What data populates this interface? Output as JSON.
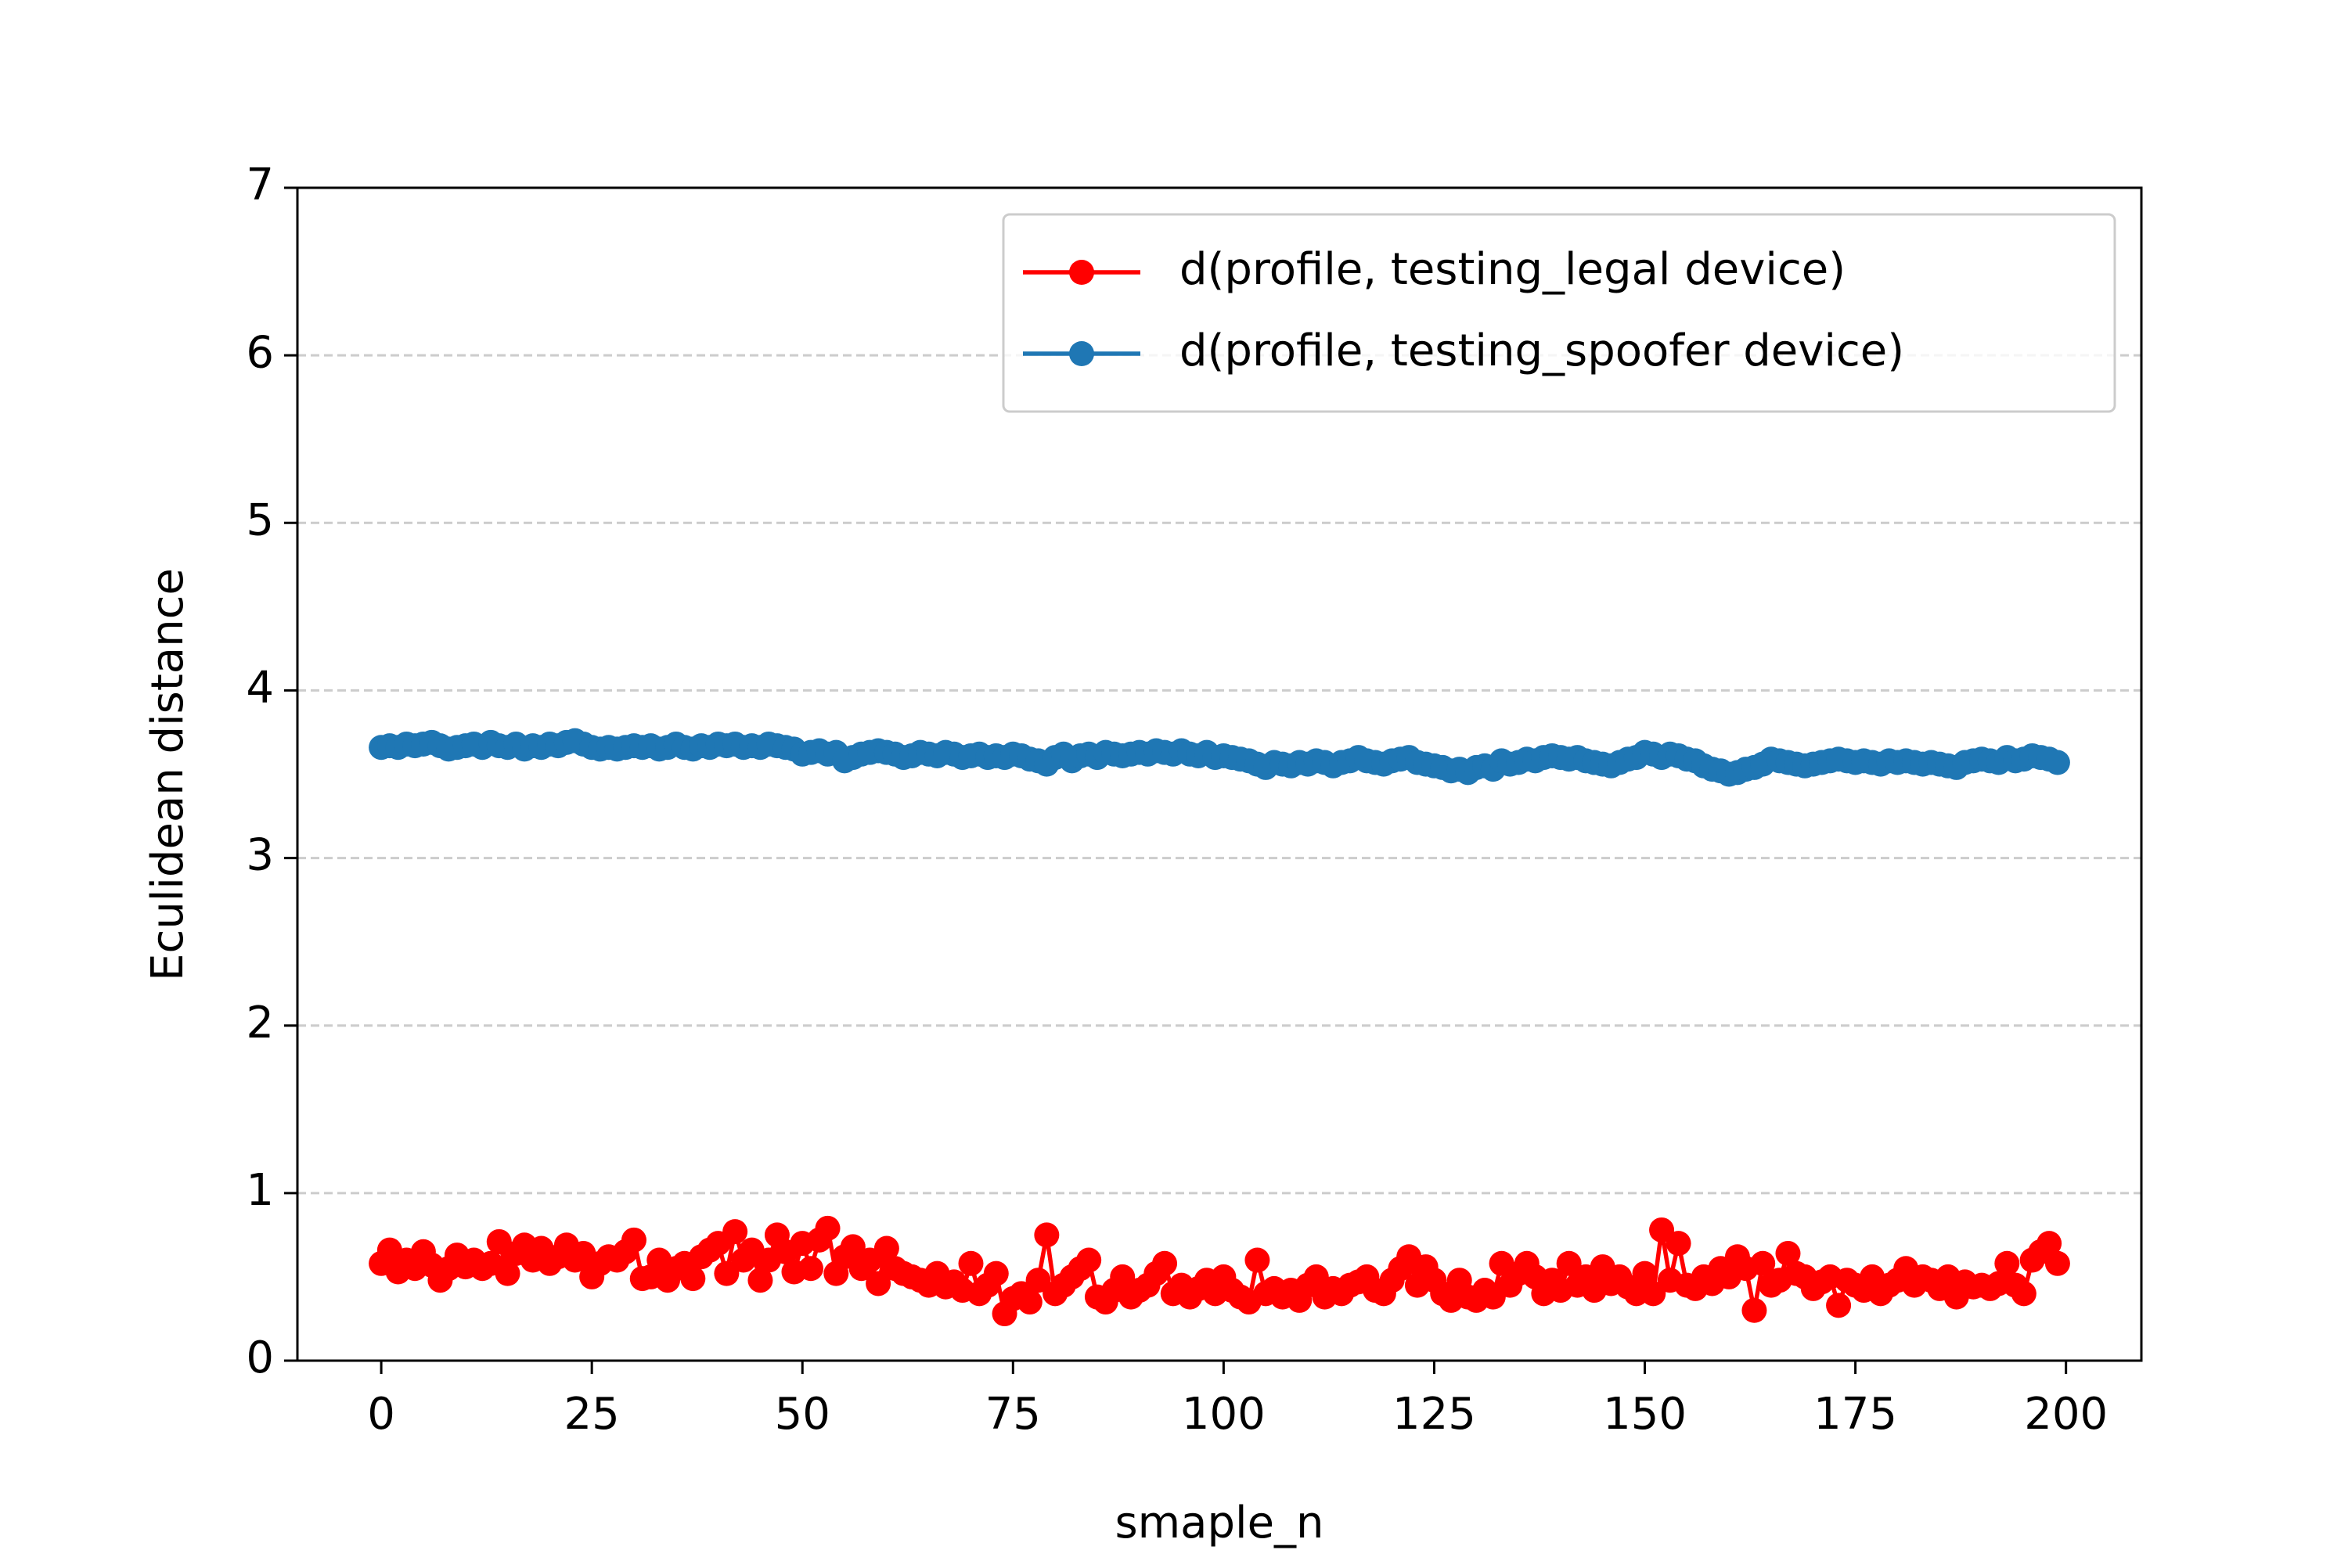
{
  "chart_data": {
    "type": "line",
    "xlabel": "smaple_n",
    "ylabel": "Eculidean distance",
    "xlim": [
      -9.95,
      208.95
    ],
    "ylim": [
      0,
      7
    ],
    "xticks": [
      0,
      25,
      50,
      75,
      100,
      125,
      150,
      175,
      200
    ],
    "yticks": [
      0,
      1,
      2,
      3,
      4,
      5,
      6,
      7
    ],
    "grid": "y",
    "legend": "upper right",
    "x": [
      0,
      1,
      2,
      3,
      4,
      5,
      6,
      7,
      8,
      9,
      10,
      11,
      12,
      13,
      14,
      15,
      16,
      17,
      18,
      19,
      20,
      21,
      22,
      23,
      24,
      25,
      26,
      27,
      28,
      29,
      30,
      31,
      32,
      33,
      34,
      35,
      36,
      37,
      38,
      39,
      40,
      41,
      42,
      43,
      44,
      45,
      46,
      47,
      48,
      49,
      50,
      51,
      52,
      53,
      54,
      55,
      56,
      57,
      58,
      59,
      60,
      61,
      62,
      63,
      64,
      65,
      66,
      67,
      68,
      69,
      70,
      71,
      72,
      73,
      74,
      75,
      76,
      77,
      78,
      79,
      80,
      81,
      82,
      83,
      84,
      85,
      86,
      87,
      88,
      89,
      90,
      91,
      92,
      93,
      94,
      95,
      96,
      97,
      98,
      99,
      100,
      101,
      102,
      103,
      104,
      105,
      106,
      107,
      108,
      109,
      110,
      111,
      112,
      113,
      114,
      115,
      116,
      117,
      118,
      119,
      120,
      121,
      122,
      123,
      124,
      125,
      126,
      127,
      128,
      129,
      130,
      131,
      132,
      133,
      134,
      135,
      136,
      137,
      138,
      139,
      140,
      141,
      142,
      143,
      144,
      145,
      146,
      147,
      148,
      149,
      150,
      151,
      152,
      153,
      154,
      155,
      156,
      157,
      158,
      159,
      160,
      161,
      162,
      163,
      164,
      165,
      166,
      167,
      168,
      169,
      170,
      171,
      172,
      173,
      174,
      175,
      176,
      177,
      178,
      179,
      180,
      181,
      182,
      183,
      184,
      185,
      186,
      187,
      188,
      189,
      190,
      191,
      192,
      193,
      194,
      195,
      196,
      197,
      198,
      199
    ],
    "series": [
      {
        "name": "d(profile, testing_legal device)",
        "color": "#ff0000",
        "values": [
          0.58,
          0.66,
          0.53,
          0.6,
          0.55,
          0.65,
          0.57,
          0.48,
          0.55,
          0.63,
          0.56,
          0.6,
          0.55,
          0.58,
          0.71,
          0.52,
          0.64,
          0.69,
          0.6,
          0.67,
          0.58,
          0.62,
          0.69,
          0.6,
          0.64,
          0.5,
          0.58,
          0.62,
          0.6,
          0.65,
          0.72,
          0.49,
          0.5,
          0.6,
          0.48,
          0.55,
          0.58,
          0.49,
          0.62,
          0.66,
          0.7,
          0.52,
          0.77,
          0.6,
          0.66,
          0.48,
          0.6,
          0.75,
          0.65,
          0.53,
          0.7,
          0.55,
          0.72,
          0.79,
          0.52,
          0.62,
          0.68,
          0.55,
          0.6,
          0.46,
          0.67,
          0.55,
          0.52,
          0.5,
          0.48,
          0.45,
          0.52,
          0.44,
          0.47,
          0.42,
          0.58,
          0.4,
          0.45,
          0.52,
          0.28,
          0.37,
          0.4,
          0.35,
          0.48,
          0.75,
          0.4,
          0.45,
          0.5,
          0.55,
          0.6,
          0.38,
          0.35,
          0.42,
          0.5,
          0.38,
          0.42,
          0.45,
          0.52,
          0.58,
          0.4,
          0.45,
          0.38,
          0.43,
          0.48,
          0.4,
          0.5,
          0.42,
          0.38,
          0.35,
          0.6,
          0.4,
          0.43,
          0.38,
          0.42,
          0.36,
          0.45,
          0.5,
          0.38,
          0.43,
          0.4,
          0.45,
          0.47,
          0.5,
          0.42,
          0.4,
          0.48,
          0.55,
          0.62,
          0.45,
          0.56,
          0.48,
          0.4,
          0.36,
          0.48,
          0.38,
          0.36,
          0.42,
          0.38,
          0.58,
          0.45,
          0.52,
          0.58,
          0.5,
          0.4,
          0.48,
          0.42,
          0.58,
          0.45,
          0.5,
          0.42,
          0.56,
          0.46,
          0.5,
          0.44,
          0.4,
          0.52,
          0.4,
          0.78,
          0.48,
          0.7,
          0.45,
          0.43,
          0.5,
          0.46,
          0.55,
          0.5,
          0.62,
          0.55,
          0.3,
          0.58,
          0.45,
          0.48,
          0.64,
          0.52,
          0.5,
          0.43,
          0.47,
          0.5,
          0.33,
          0.48,
          0.45,
          0.42,
          0.5,
          0.4,
          0.45,
          0.48,
          0.55,
          0.45,
          0.5,
          0.48,
          0.43,
          0.5,
          0.38,
          0.47,
          0.44,
          0.45,
          0.43,
          0.46,
          0.58,
          0.45,
          0.4,
          0.6,
          0.65,
          0.7,
          0.58
        ]
      },
      {
        "name": "d(profile, testing_spoofer device)",
        "color": "#1f77b4",
        "values": [
          3.66,
          3.67,
          3.66,
          3.68,
          3.67,
          3.68,
          3.69,
          3.67,
          3.65,
          3.66,
          3.67,
          3.68,
          3.66,
          3.69,
          3.67,
          3.66,
          3.68,
          3.65,
          3.67,
          3.66,
          3.68,
          3.67,
          3.69,
          3.7,
          3.68,
          3.66,
          3.65,
          3.66,
          3.65,
          3.66,
          3.67,
          3.66,
          3.67,
          3.65,
          3.66,
          3.68,
          3.66,
          3.65,
          3.67,
          3.66,
          3.68,
          3.67,
          3.68,
          3.66,
          3.67,
          3.66,
          3.68,
          3.67,
          3.66,
          3.65,
          3.62,
          3.63,
          3.64,
          3.62,
          3.63,
          3.58,
          3.6,
          3.62,
          3.63,
          3.64,
          3.63,
          3.62,
          3.6,
          3.61,
          3.63,
          3.62,
          3.61,
          3.63,
          3.62,
          3.6,
          3.61,
          3.62,
          3.6,
          3.61,
          3.6,
          3.62,
          3.61,
          3.59,
          3.58,
          3.56,
          3.6,
          3.62,
          3.58,
          3.61,
          3.62,
          3.6,
          3.63,
          3.62,
          3.61,
          3.62,
          3.63,
          3.62,
          3.64,
          3.63,
          3.62,
          3.64,
          3.62,
          3.61,
          3.63,
          3.6,
          3.61,
          3.6,
          3.59,
          3.58,
          3.56,
          3.54,
          3.57,
          3.56,
          3.55,
          3.57,
          3.56,
          3.58,
          3.57,
          3.55,
          3.57,
          3.58,
          3.6,
          3.58,
          3.57,
          3.56,
          3.58,
          3.59,
          3.6,
          3.57,
          3.56,
          3.55,
          3.54,
          3.52,
          3.53,
          3.51,
          3.54,
          3.55,
          3.53,
          3.58,
          3.56,
          3.57,
          3.59,
          3.58,
          3.6,
          3.61,
          3.6,
          3.59,
          3.6,
          3.58,
          3.57,
          3.56,
          3.55,
          3.57,
          3.59,
          3.6,
          3.63,
          3.62,
          3.6,
          3.62,
          3.61,
          3.59,
          3.58,
          3.55,
          3.53,
          3.52,
          3.5,
          3.51,
          3.53,
          3.54,
          3.56,
          3.59,
          3.58,
          3.57,
          3.56,
          3.55,
          3.56,
          3.57,
          3.58,
          3.59,
          3.58,
          3.57,
          3.58,
          3.57,
          3.56,
          3.58,
          3.57,
          3.58,
          3.57,
          3.56,
          3.57,
          3.56,
          3.55,
          3.54,
          3.57,
          3.58,
          3.59,
          3.58,
          3.57,
          3.6,
          3.58,
          3.59,
          3.61,
          3.6,
          3.59,
          3.57
        ]
      }
    ]
  }
}
